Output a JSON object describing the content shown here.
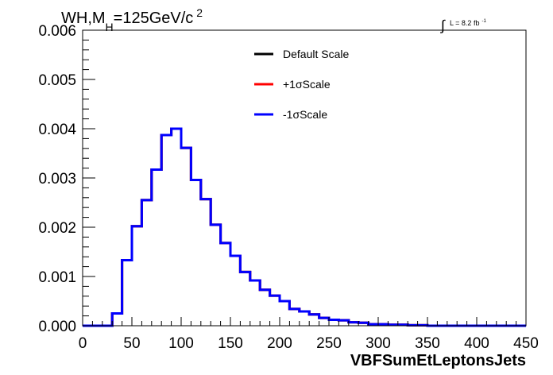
{
  "chart_data": {
    "type": "line",
    "title_parts": {
      "main": "WH,M",
      "sub": "H",
      "rest": "=125GeV/c",
      "sup": "2"
    },
    "lumi": {
      "text": "L = 8.2 fb",
      "sup": "-1"
    },
    "xlabel": "VBFSumEtLeptonsJets",
    "ylabel": "",
    "xlim": [
      0,
      450
    ],
    "ylim": [
      0,
      0.006
    ],
    "xticks": [
      "0",
      "50",
      "100",
      "150",
      "200",
      "250",
      "300",
      "350",
      "400",
      "450"
    ],
    "yticks": [
      "0.000",
      "0.001",
      "0.002",
      "0.003",
      "0.004",
      "0.005",
      "0.006"
    ],
    "bin_width": 10,
    "bin_edges_start": 0,
    "legend_position": "top-center",
    "legend": [
      {
        "label": "Default Scale",
        "color": "#000000"
      },
      {
        "label": "+1σScale",
        "color": "#ff0000"
      },
      {
        "label": "-1σScale",
        "color": "#0000ff"
      }
    ],
    "series": [
      {
        "name": "Default Scale",
        "color": "#000000",
        "values": [
          0,
          0,
          0,
          0.00025,
          0.00133,
          0.00202,
          0.00255,
          0.00317,
          0.00387,
          0.004,
          0.00361,
          0.00296,
          0.00257,
          0.00205,
          0.00168,
          0.00142,
          0.00109,
          0.00092,
          0.00073,
          0.00061,
          0.0005,
          0.00034,
          0.00029,
          0.00023,
          0.00016,
          0.00012,
          0.00011,
          7e-05,
          6e-05,
          3e-05,
          3e-05,
          2e-05,
          2e-05,
          1e-05,
          1e-05,
          0,
          0,
          0,
          0,
          0,
          0,
          0,
          0,
          0,
          0
        ]
      },
      {
        "name": "+1σScale",
        "color": "#ff0000",
        "values": [
          0,
          0,
          0,
          0.00025,
          0.00133,
          0.00202,
          0.00255,
          0.00317,
          0.00387,
          0.004,
          0.00361,
          0.00296,
          0.00257,
          0.00205,
          0.00168,
          0.00142,
          0.00109,
          0.00092,
          0.00073,
          0.00061,
          0.0005,
          0.00034,
          0.00029,
          0.00023,
          0.00016,
          0.00012,
          0.00011,
          7e-05,
          6e-05,
          3e-05,
          3e-05,
          2e-05,
          2e-05,
          1e-05,
          1e-05,
          0,
          0,
          0,
          0,
          0,
          0,
          0,
          0,
          0,
          0
        ]
      },
      {
        "name": "-1σScale",
        "color": "#0000ff",
        "values": [
          0,
          0,
          0,
          0.00025,
          0.00133,
          0.00202,
          0.00255,
          0.00317,
          0.00387,
          0.004,
          0.00361,
          0.00296,
          0.00257,
          0.00205,
          0.00168,
          0.00142,
          0.00109,
          0.00092,
          0.00073,
          0.00061,
          0.0005,
          0.00034,
          0.00029,
          0.00023,
          0.00016,
          0.00012,
          0.00011,
          7e-05,
          6e-05,
          3e-05,
          3e-05,
          2e-05,
          2e-05,
          1e-05,
          1e-05,
          0,
          0,
          0,
          0,
          0,
          0,
          0,
          0,
          0,
          0
        ]
      }
    ]
  }
}
